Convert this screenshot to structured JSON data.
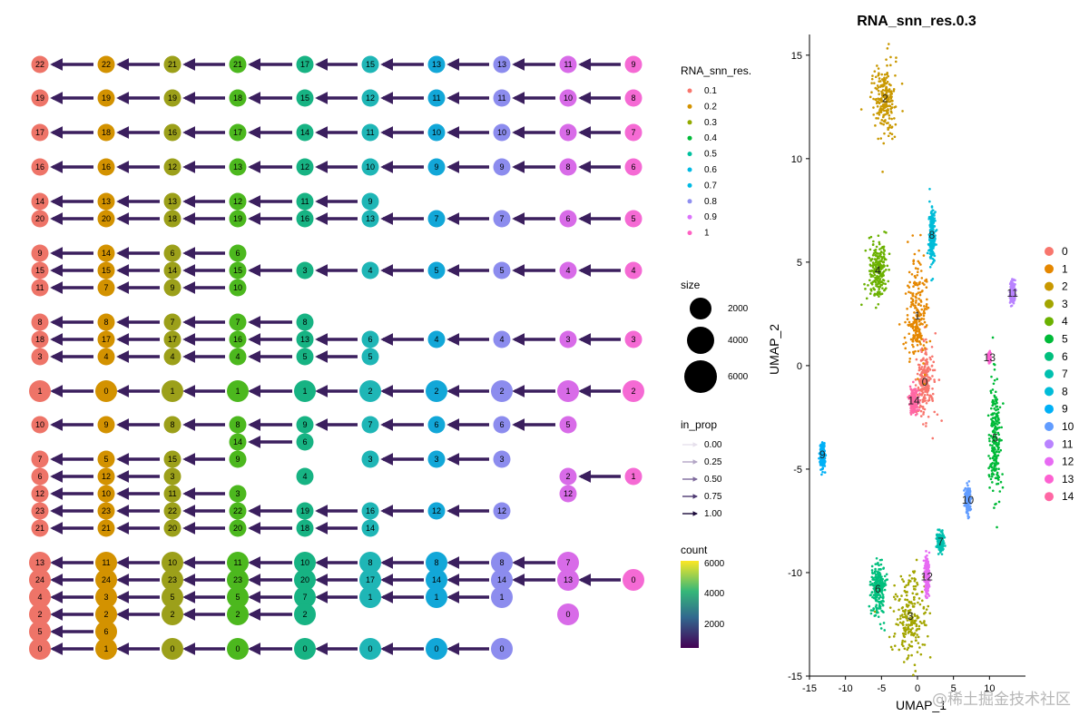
{
  "clustree": {
    "levels": [
      "0.1",
      "0.2",
      "0.3",
      "0.4",
      "0.5",
      "0.6",
      "0.7",
      "0.8",
      "0.9",
      "1"
    ],
    "level_colors": [
      "#F8766D",
      "#D39200",
      "#93AA00",
      "#00BA38",
      "#00C19F",
      "#00B9E3",
      "#00B9E3",
      "#8F8FF0",
      "#DB72FB",
      "#FF61C3"
    ],
    "node_colors": [
      "#EE7468",
      "#D39200",
      "#9CA01A",
      "#4CB81E",
      "#17B383",
      "#1FB6B6",
      "#12A7D8",
      "#8C8CEE",
      "#D86BE8",
      "#F56AD4"
    ],
    "rows": [
      [
        "22",
        "22",
        "21",
        "21",
        "17",
        "15",
        "13",
        "13",
        "11",
        "9"
      ],
      [
        "19",
        "19",
        "19",
        "18",
        "15",
        "12",
        "11",
        "11",
        "10",
        "8"
      ],
      [
        "17",
        "18",
        "16",
        "17",
        "14",
        "11",
        "10",
        "10",
        "9",
        "7"
      ],
      [
        "16",
        "16",
        "12",
        "13",
        "12",
        "10",
        "9",
        "9",
        "8",
        "6"
      ],
      [
        "14",
        "13",
        "13",
        "12",
        "11",
        "9",
        "",
        "",
        "",
        ""
      ],
      [
        "20",
        "20",
        "18",
        "19",
        "16",
        "13",
        "7",
        "7",
        "6",
        "5"
      ],
      [
        "9",
        "14",
        "6",
        "6",
        "",
        "",
        "",
        "",
        "",
        ""
      ],
      [
        "15",
        "15",
        "14",
        "15",
        "3",
        "4",
        "5",
        "5",
        "4",
        "4"
      ],
      [
        "11",
        "7",
        "9",
        "10",
        "",
        "",
        "",
        "",
        "",
        ""
      ],
      [
        "8",
        "8",
        "7",
        "7",
        "8",
        "",
        "",
        "",
        "",
        ""
      ],
      [
        "18",
        "17",
        "17",
        "16",
        "13",
        "6",
        "4",
        "4",
        "3",
        "3"
      ],
      [
        "3",
        "4",
        "4",
        "4",
        "5",
        "5",
        "",
        "",
        "",
        ""
      ],
      [
        "1",
        "0",
        "1",
        "1",
        "1",
        "2",
        "2",
        "2",
        "1",
        "2"
      ],
      [
        "10",
        "9",
        "8",
        "8",
        "9",
        "7",
        "6",
        "6",
        "5",
        ""
      ],
      [
        "",
        "",
        "",
        "14",
        "6",
        "",
        "",
        "",
        "",
        ""
      ],
      [
        "7",
        "5",
        "15",
        "9",
        "",
        "3",
        "3",
        "3",
        "",
        ""
      ],
      [
        "6",
        "12",
        "3",
        "",
        "4",
        "",
        "",
        "",
        "2",
        "1"
      ],
      [
        "12",
        "10",
        "11",
        "3",
        "",
        "",
        "",
        "",
        "12",
        ""
      ],
      [
        "23",
        "23",
        "22",
        "22",
        "19",
        "16",
        "12",
        "12",
        "",
        ""
      ],
      [
        "21",
        "21",
        "20",
        "20",
        "18",
        "14",
        "",
        "",
        "",
        ""
      ],
      [
        "13",
        "11",
        "10",
        "11",
        "10",
        "8",
        "8",
        "8",
        "7",
        ""
      ],
      [
        "24",
        "24",
        "23",
        "23",
        "20",
        "17",
        "14",
        "14",
        "13",
        "0"
      ],
      [
        "4",
        "3",
        "5",
        "5",
        "7",
        "1",
        "1",
        "1",
        "",
        ""
      ],
      [
        "2",
        "2",
        "2",
        "2",
        "2",
        "",
        "",
        "",
        "0",
        ""
      ],
      [
        "5",
        "6",
        "",
        "",
        "",
        "",
        "",
        "",
        "",
        ""
      ],
      [
        "0",
        "1",
        "0",
        "0",
        "0",
        "0",
        "0",
        "0",
        "",
        ""
      ]
    ],
    "legend": {
      "color_title": "RNA_snn_res.",
      "size_title": "size",
      "size_labels": [
        "2000",
        "4000",
        "6000"
      ],
      "prop_title": "in_prop",
      "prop_labels": [
        "0.00",
        "0.25",
        "0.50",
        "0.75",
        "1.00"
      ],
      "count_title": "count",
      "count_labels": [
        "6000",
        "4000",
        "2000"
      ]
    }
  },
  "chart_data": {
    "type": "scatter",
    "title": "RNA_snn_res.0.3",
    "xlabel": "UMAP_1",
    "ylabel": "UMAP_2",
    "xlim": [
      -15,
      15
    ],
    "ylim": [
      -15,
      16
    ],
    "xticks": [
      "-15",
      "-10",
      "-5",
      "0",
      "5",
      "10"
    ],
    "yticks": [
      "15",
      "10",
      "5",
      "0",
      "-5",
      "-10",
      "-15"
    ],
    "legend_title": "",
    "clusters": [
      {
        "name": "0",
        "color": "#F8766D",
        "center": [
          1.0,
          -0.8
        ]
      },
      {
        "name": "1",
        "color": "#E58700",
        "center": [
          0.0,
          2.4
        ]
      },
      {
        "name": "2",
        "color": "#C99800",
        "center": [
          -4.5,
          12.9
        ]
      },
      {
        "name": "3",
        "color": "#A3A500",
        "center": [
          -1.0,
          -12.1
        ]
      },
      {
        "name": "4",
        "color": "#6BB100",
        "center": [
          -5.5,
          4.6
        ]
      },
      {
        "name": "5",
        "color": "#00BA38",
        "center": [
          10.8,
          -3.5
        ]
      },
      {
        "name": "6",
        "color": "#00BF7D",
        "center": [
          -5.5,
          -10.8
        ]
      },
      {
        "name": "7",
        "color": "#00C0AF",
        "center": [
          3.2,
          -8.5
        ]
      },
      {
        "name": "8",
        "color": "#00BCD8",
        "center": [
          2.0,
          6.3
        ]
      },
      {
        "name": "9",
        "color": "#00B0F6",
        "center": [
          -13.2,
          -4.3
        ]
      },
      {
        "name": "10",
        "color": "#619CFF",
        "center": [
          7.0,
          -6.5
        ]
      },
      {
        "name": "11",
        "color": "#B983FF",
        "center": [
          13.2,
          3.5
        ]
      },
      {
        "name": "12",
        "color": "#E76BF3",
        "center": [
          1.3,
          -10.2
        ]
      },
      {
        "name": "13",
        "color": "#FD61D1",
        "center": [
          10.0,
          0.4
        ]
      },
      {
        "name": "14",
        "color": "#FF67A4",
        "center": [
          -0.5,
          -1.7
        ]
      }
    ]
  },
  "watermark": "@稀土掘金技术社区"
}
